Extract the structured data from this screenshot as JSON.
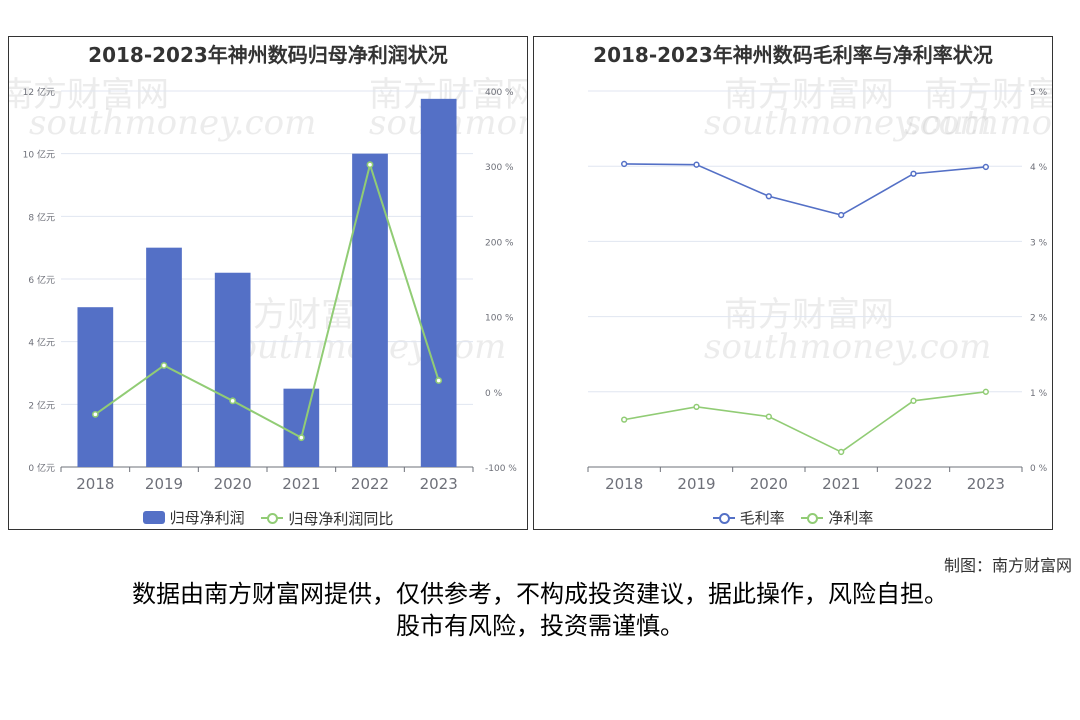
{
  "credit": "制图：南方财富网",
  "disclaimer": [
    "数据由南方财富网提供，仅供参考，不构成投资建议，据此操作，风险自担。",
    "股市有风险，投资需谨慎。"
  ],
  "watermark": {
    "cn": "南方财富网",
    "en": "southmoney.com"
  },
  "colors": {
    "bar": "#5470c6",
    "green": "#91cc75",
    "blue": "#5470c6",
    "axis": "#6e7079",
    "grid": "#e0e6f1"
  },
  "chart_data": [
    {
      "type": "bar",
      "title": "2018-2023年神州数码归母净利润状况",
      "categories": [
        "2018",
        "2019",
        "2020",
        "2021",
        "2022",
        "2023"
      ],
      "series": [
        {
          "name": "归母净利润",
          "type": "bar",
          "axis": "left",
          "values": [
            5.1,
            7.0,
            6.2,
            2.5,
            10.0,
            11.75
          ]
        },
        {
          "name": "归母净利润同比",
          "type": "line",
          "axis": "right",
          "values": [
            -30,
            35,
            -12,
            -61,
            302,
            15
          ]
        }
      ],
      "y_left": {
        "min": 0,
        "max": 12,
        "step": 2,
        "unit": "亿元",
        "ticks": [
          "0 亿元",
          "2 亿元",
          "4 亿元",
          "6 亿元",
          "8 亿元",
          "10 亿元",
          "12 亿元"
        ]
      },
      "y_right": {
        "min": -100,
        "max": 400,
        "step": 100,
        "unit": "%",
        "ticks": [
          "-100 %",
          "0 %",
          "100 %",
          "200 %",
          "300 %",
          "400 %"
        ]
      },
      "grid": true,
      "legend": "bottom"
    },
    {
      "type": "line",
      "title": "2018-2023年神州数码毛利率与净利率状况",
      "categories": [
        "2018",
        "2019",
        "2020",
        "2021",
        "2022",
        "2023"
      ],
      "series": [
        {
          "name": "毛利率",
          "values": [
            4.03,
            4.02,
            3.6,
            3.35,
            3.9,
            3.99
          ]
        },
        {
          "name": "净利率",
          "values": [
            0.63,
            0.8,
            0.67,
            0.2,
            0.88,
            1.0
          ]
        }
      ],
      "y_right": {
        "min": 0,
        "max": 5,
        "step": 1,
        "unit": "%",
        "ticks": [
          "0 %",
          "1 %",
          "2 %",
          "3 %",
          "4 %",
          "5 %"
        ]
      },
      "grid": true,
      "legend": "bottom"
    }
  ]
}
